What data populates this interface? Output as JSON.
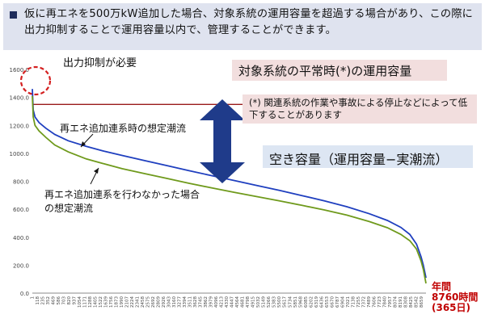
{
  "header": {
    "text": "仮に再エネを500万kW追加した場合、対象系統の運用容量を超過する場合があり、この際に出力抑制することで運用容量以内で、管理することができます。"
  },
  "callouts": {
    "curtailment_needed": "出力抑制が必要",
    "normal_capacity": "対象系統の平常時(*)の運用容量",
    "footnote_mark": "(*)",
    "footnote_text": "関連系統の作業や事故による停止などによって低下することがあります",
    "free_capacity": "空き容量（運用容量−実潮流）",
    "with_re_label": "再エネ追加連系時の想定潮流",
    "without_re_label_1": "再エネ追加連系を行わなかった場合",
    "without_re_label_2": "の想定潮流",
    "year_label_1": "年間",
    "year_label_2": "8760時間",
    "year_label_3": "(365日)"
  },
  "colors": {
    "with_re": "#1f3fbf",
    "without_re": "#6f9a1c",
    "capacity_line": "#9a1a1a",
    "arrow": "#1f3b8a",
    "header_bg": "#dfe3ef",
    "dashed_circle": "#d42020",
    "year_label": "#c00000"
  },
  "chart_data": {
    "type": "line",
    "ylim": [
      0,
      1600
    ],
    "yticks": [
      "0.0",
      "200.0",
      "400.0",
      "600.0",
      "800.0",
      "1000.0",
      "1200.0",
      "1400.0",
      "1600.0"
    ],
    "xticks": [
      "1",
      "118",
      "235",
      "352",
      "469",
      "586",
      "703",
      "820",
      "937",
      "1054",
      "1171",
      "1288",
      "1405",
      "1522",
      "1639",
      "1756",
      "1873",
      "1990",
      "2107",
      "2224",
      "2341",
      "2458",
      "2575",
      "2692",
      "2809",
      "2926",
      "3043",
      "3160",
      "3277",
      "3394",
      "3511",
      "3628",
      "3745",
      "3862",
      "3979",
      "4096",
      "4213",
      "4330",
      "4447",
      "4564",
      "4681",
      "4798",
      "4915",
      "5032",
      "5149",
      "5266",
      "5383",
      "5500",
      "5617",
      "5734",
      "5851",
      "5968",
      "6085",
      "6202",
      "6319",
      "6436",
      "6553",
      "6670",
      "6787",
      "6904",
      "7021",
      "7138",
      "7255",
      "7372",
      "7489",
      "7606",
      "7723",
      "7840",
      "7957",
      "8074",
      "8191",
      "8308",
      "8425",
      "8542",
      "8659"
    ],
    "xmax": 8760,
    "capacity": 1350,
    "series": [
      {
        "key": "with_re",
        "x": [
          1,
          20,
          60,
          150,
          300,
          500,
          800,
          1200,
          1600,
          2000,
          2500,
          3000,
          3500,
          4000,
          4500,
          5000,
          5500,
          6000,
          6500,
          7000,
          7500,
          7900,
          8200,
          8400,
          8550,
          8650,
          8700,
          8760
        ],
        "y": [
          1460,
          1310,
          1260,
          1220,
          1180,
          1135,
          1090,
          1050,
          1015,
          985,
          948,
          912,
          875,
          840,
          805,
          770,
          735,
          698,
          660,
          618,
          568,
          520,
          470,
          420,
          350,
          260,
          200,
          110
        ]
      },
      {
        "key": "without_re",
        "x": [
          1,
          20,
          60,
          150,
          300,
          500,
          800,
          1200,
          1600,
          2000,
          2500,
          3000,
          3500,
          4000,
          4500,
          5000,
          5500,
          6000,
          6500,
          7000,
          7500,
          7900,
          8200,
          8400,
          8550,
          8650,
          8700,
          8760
        ],
        "y": [
          1410,
          1260,
          1200,
          1160,
          1115,
          1060,
          1010,
          960,
          925,
          890,
          855,
          820,
          785,
          752,
          720,
          690,
          660,
          628,
          595,
          558,
          512,
          468,
          420,
          375,
          315,
          230,
          170,
          70
        ]
      }
    ]
  }
}
